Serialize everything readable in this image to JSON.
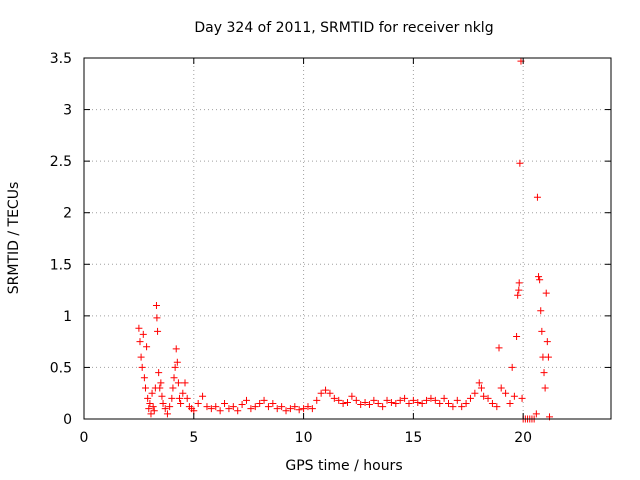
{
  "chart_data": {
    "type": "scatter",
    "title": "Day 324 of 2011, SRMTID for receiver nklg",
    "xlabel": "GPS time / hours",
    "ylabel": "SRMTID / TECUs",
    "xlim": [
      0,
      24
    ],
    "ylim": [
      0,
      3.5
    ],
    "xticks": [
      0,
      5,
      10,
      15,
      20
    ],
    "xtick_labels": [
      "0",
      "5",
      "10",
      "15",
      "20"
    ],
    "yticks": [
      0,
      0.5,
      1,
      1.5,
      2,
      2.5,
      3,
      3.5
    ],
    "ytick_labels": [
      "0",
      "0.5",
      "1",
      "1.5",
      "2",
      "2.5",
      "3",
      "3.5"
    ],
    "grid": true,
    "marker": "+",
    "color": "#ff0000",
    "series": [
      {
        "name": "SRMTID",
        "points": [
          [
            2.5,
            0.88
          ],
          [
            2.55,
            0.75
          ],
          [
            2.6,
            0.6
          ],
          [
            2.65,
            0.5
          ],
          [
            2.7,
            0.82
          ],
          [
            2.75,
            0.4
          ],
          [
            2.8,
            0.3
          ],
          [
            2.85,
            0.7
          ],
          [
            2.9,
            0.2
          ],
          [
            2.95,
            0.1
          ],
          [
            3.0,
            0.15
          ],
          [
            3.05,
            0.05
          ],
          [
            3.1,
            0.25
          ],
          [
            3.15,
            0.12
          ],
          [
            3.2,
            0.08
          ],
          [
            3.25,
            0.3
          ],
          [
            3.3,
            1.1
          ],
          [
            3.32,
            0.98
          ],
          [
            3.35,
            0.85
          ],
          [
            3.4,
            0.45
          ],
          [
            3.45,
            0.3
          ],
          [
            3.5,
            0.35
          ],
          [
            3.55,
            0.22
          ],
          [
            3.6,
            0.15
          ],
          [
            3.7,
            0.1
          ],
          [
            3.8,
            0.05
          ],
          [
            3.9,
            0.12
          ],
          [
            4.0,
            0.2
          ],
          [
            4.05,
            0.3
          ],
          [
            4.1,
            0.4
          ],
          [
            4.15,
            0.5
          ],
          [
            4.2,
            0.68
          ],
          [
            4.25,
            0.55
          ],
          [
            4.3,
            0.35
          ],
          [
            4.35,
            0.2
          ],
          [
            4.4,
            0.15
          ],
          [
            4.5,
            0.25
          ],
          [
            4.6,
            0.35
          ],
          [
            4.7,
            0.2
          ],
          [
            4.8,
            0.12
          ],
          [
            4.9,
            0.1
          ],
          [
            5.0,
            0.08
          ],
          [
            5.2,
            0.15
          ],
          [
            5.4,
            0.22
          ],
          [
            5.6,
            0.12
          ],
          [
            5.8,
            0.1
          ],
          [
            6.0,
            0.12
          ],
          [
            6.2,
            0.08
          ],
          [
            6.4,
            0.15
          ],
          [
            6.6,
            0.1
          ],
          [
            6.8,
            0.12
          ],
          [
            7.0,
            0.08
          ],
          [
            7.2,
            0.14
          ],
          [
            7.4,
            0.18
          ],
          [
            7.6,
            0.1
          ],
          [
            7.8,
            0.12
          ],
          [
            8.0,
            0.15
          ],
          [
            8.2,
            0.18
          ],
          [
            8.4,
            0.12
          ],
          [
            8.6,
            0.15
          ],
          [
            8.8,
            0.1
          ],
          [
            9.0,
            0.12
          ],
          [
            9.2,
            0.08
          ],
          [
            9.4,
            0.1
          ],
          [
            9.6,
            0.12
          ],
          [
            9.8,
            0.09
          ],
          [
            10.0,
            0.1
          ],
          [
            10.2,
            0.12
          ],
          [
            10.4,
            0.1
          ],
          [
            10.6,
            0.18
          ],
          [
            10.8,
            0.25
          ],
          [
            11.0,
            0.28
          ],
          [
            11.2,
            0.25
          ],
          [
            11.4,
            0.2
          ],
          [
            11.6,
            0.18
          ],
          [
            11.8,
            0.15
          ],
          [
            12.0,
            0.16
          ],
          [
            12.2,
            0.22
          ],
          [
            12.4,
            0.18
          ],
          [
            12.6,
            0.14
          ],
          [
            12.8,
            0.16
          ],
          [
            13.0,
            0.14
          ],
          [
            13.2,
            0.18
          ],
          [
            13.4,
            0.15
          ],
          [
            13.6,
            0.12
          ],
          [
            13.8,
            0.18
          ],
          [
            14.0,
            0.16
          ],
          [
            14.2,
            0.15
          ],
          [
            14.4,
            0.18
          ],
          [
            14.6,
            0.2
          ],
          [
            14.8,
            0.15
          ],
          [
            15.0,
            0.18
          ],
          [
            15.2,
            0.16
          ],
          [
            15.4,
            0.15
          ],
          [
            15.6,
            0.18
          ],
          [
            15.8,
            0.2
          ],
          [
            16.0,
            0.18
          ],
          [
            16.2,
            0.15
          ],
          [
            16.4,
            0.2
          ],
          [
            16.6,
            0.15
          ],
          [
            16.8,
            0.12
          ],
          [
            17.0,
            0.18
          ],
          [
            17.2,
            0.12
          ],
          [
            17.4,
            0.15
          ],
          [
            17.6,
            0.2
          ],
          [
            17.8,
            0.25
          ],
          [
            18.0,
            0.35
          ],
          [
            18.1,
            0.3
          ],
          [
            18.2,
            0.22
          ],
          [
            18.4,
            0.2
          ],
          [
            18.6,
            0.15
          ],
          [
            18.8,
            0.12
          ],
          [
            18.9,
            0.69
          ],
          [
            19.0,
            0.3
          ],
          [
            19.2,
            0.25
          ],
          [
            19.4,
            0.15
          ],
          [
            19.5,
            0.5
          ],
          [
            19.6,
            0.22
          ],
          [
            19.7,
            0.8
          ],
          [
            19.75,
            1.2
          ],
          [
            19.8,
            1.25
          ],
          [
            19.82,
            1.32
          ],
          [
            19.85,
            2.48
          ],
          [
            19.9,
            3.47
          ],
          [
            19.95,
            0.2
          ],
          [
            20.0,
            0.0
          ],
          [
            20.1,
            0.0
          ],
          [
            20.2,
            0.0
          ],
          [
            20.3,
            0.0
          ],
          [
            20.4,
            0.0
          ],
          [
            20.5,
            0.0
          ],
          [
            20.6,
            0.05
          ],
          [
            20.65,
            2.15
          ],
          [
            20.7,
            1.38
          ],
          [
            20.75,
            1.35
          ],
          [
            20.8,
            1.05
          ],
          [
            20.85,
            0.85
          ],
          [
            20.9,
            0.6
          ],
          [
            20.95,
            0.45
          ],
          [
            21.0,
            0.3
          ],
          [
            21.05,
            1.22
          ],
          [
            21.1,
            0.75
          ],
          [
            21.15,
            0.6
          ],
          [
            21.2,
            0.02
          ]
        ]
      }
    ]
  }
}
